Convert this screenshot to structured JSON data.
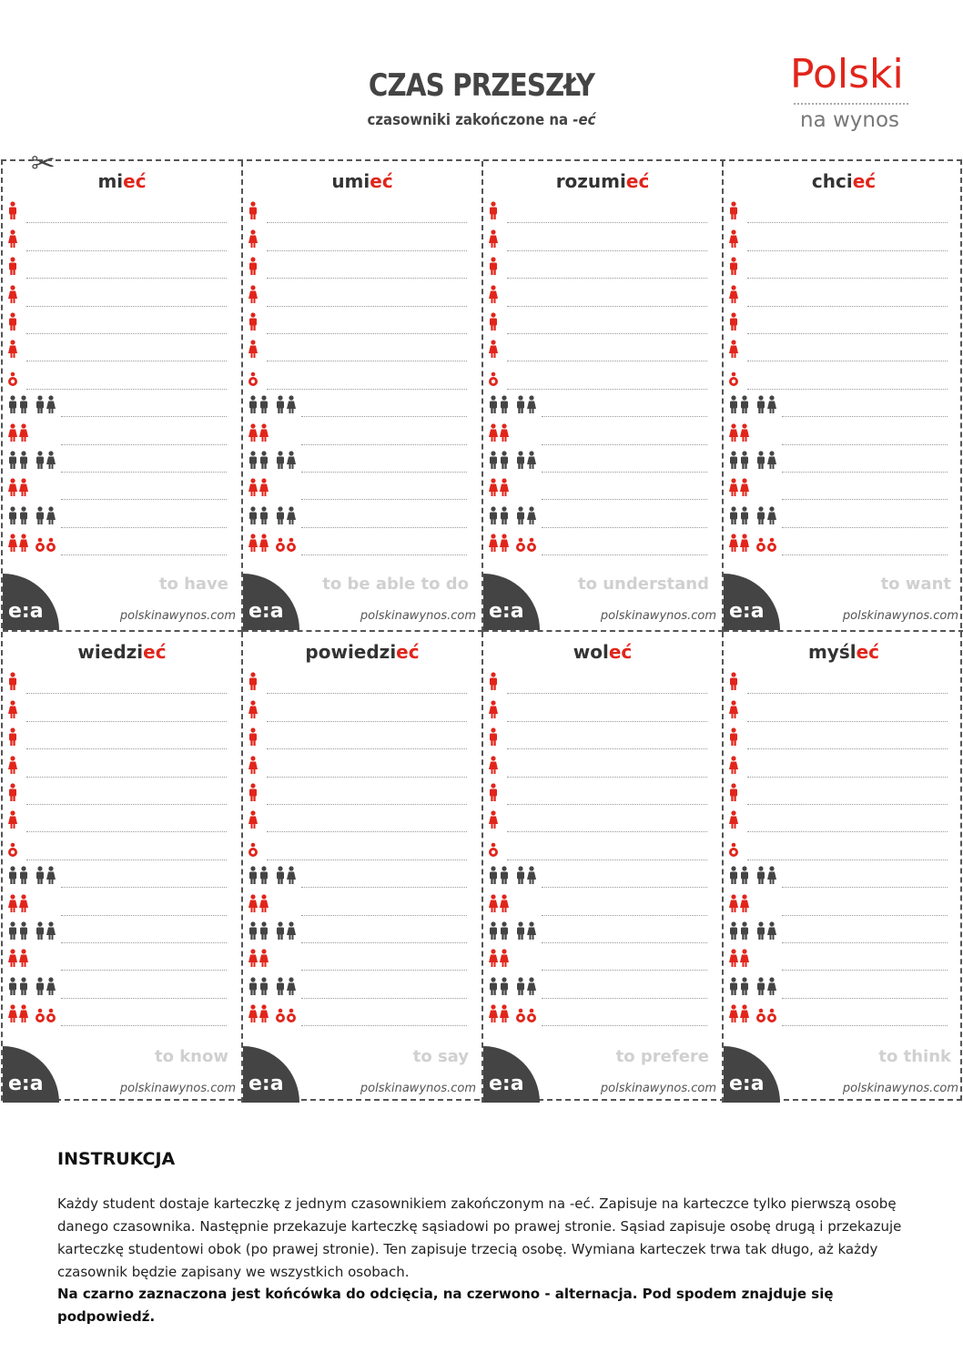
{
  "header": {
    "title": "CZAS PRZESZŁY",
    "subtitle_prefix": "czasowniki zakończone na ",
    "subtitle_suffix": "-eć"
  },
  "logo": {
    "brand": "Polski",
    "tagline": "na wynos"
  },
  "cards": [
    {
      "stem": "mi",
      "alt": "eć",
      "tail": "",
      "translation": "to have",
      "site": "polskinawynos.com",
      "badge": "e:a"
    },
    {
      "stem": "umi",
      "alt": "eć",
      "tail": "",
      "translation": "to be able to do",
      "site": "polskinawynos.com",
      "badge": "e:a"
    },
    {
      "stem": "rozumi",
      "alt": "eć",
      "tail": "",
      "translation": "to understand",
      "site": "polskinawynos.com",
      "badge": "e:a"
    },
    {
      "stem": "chci",
      "alt": "eć",
      "tail": "",
      "translation": "to want",
      "site": "polskinawynos.com",
      "badge": "e:a"
    },
    {
      "stem": "wiedzi",
      "alt": "eć",
      "tail": "",
      "translation": "to know",
      "site": "polskinawynos.com",
      "badge": "e:a"
    },
    {
      "stem": "powiedzi",
      "alt": "eć",
      "tail": "",
      "translation": "to say",
      "site": "polskinawynos.com",
      "badge": "e:a"
    },
    {
      "stem": "wol",
      "alt": "eć",
      "tail": "",
      "translation": "to prefere",
      "site": "polskinawynos.com",
      "badge": "e:a"
    },
    {
      "stem": "myśl",
      "alt": "eć",
      "tail": "",
      "translation": "to think",
      "site": "polskinawynos.com",
      "badge": "e:a"
    }
  ],
  "person_rows": [
    {
      "icons": [
        "male-red"
      ]
    },
    {
      "icons": [
        "female-red"
      ]
    },
    {
      "icons": [
        "male-red"
      ]
    },
    {
      "icons": [
        "female-red"
      ]
    },
    {
      "icons": [
        "male-red"
      ]
    },
    {
      "icons": [
        "female-red"
      ]
    },
    {
      "icons": [
        "child-red"
      ]
    },
    {
      "icons": [
        "men-pair-gray",
        "mixed-pair-gray"
      ]
    },
    {
      "icons": [
        "women-pair-red"
      ]
    },
    {
      "icons": [
        "men-pair-gray",
        "mixed-pair-gray"
      ]
    },
    {
      "icons": [
        "women-pair-red"
      ]
    },
    {
      "icons": [
        "men-pair-gray",
        "mixed-pair-gray"
      ]
    },
    {
      "icons": [
        "women-pair-red",
        "children-pair-red"
      ]
    }
  ],
  "colors": {
    "accent": "#e1251b",
    "dark": "#444444",
    "muted": "#d0d0d0"
  },
  "instructions": {
    "heading": "INSTRUKCJA",
    "paragraph": "Każdy student dostaje karteczkę z jednym czasownikiem zakończonym na -eć. Zapisuje na karteczce tylko pierwszą osobę danego czasownika. Następnie przekazuje karteczkę sąsiadowi po prawej stronie. Sąsiad zapisuje osobę drugą i przekazuje karteczkę studentowi obok (po prawej stronie). Ten zapisuje trzecią osobę. Wymiana karteczek trwa tak długo, aż każdy czasownik będzie zapisany we wszystkich osobach.",
    "bold_note": "Na czarno zaznaczona jest końcówka do odcięcia, na czerwono - alternacja. Pod spodem znajduje się podpowiedź."
  }
}
